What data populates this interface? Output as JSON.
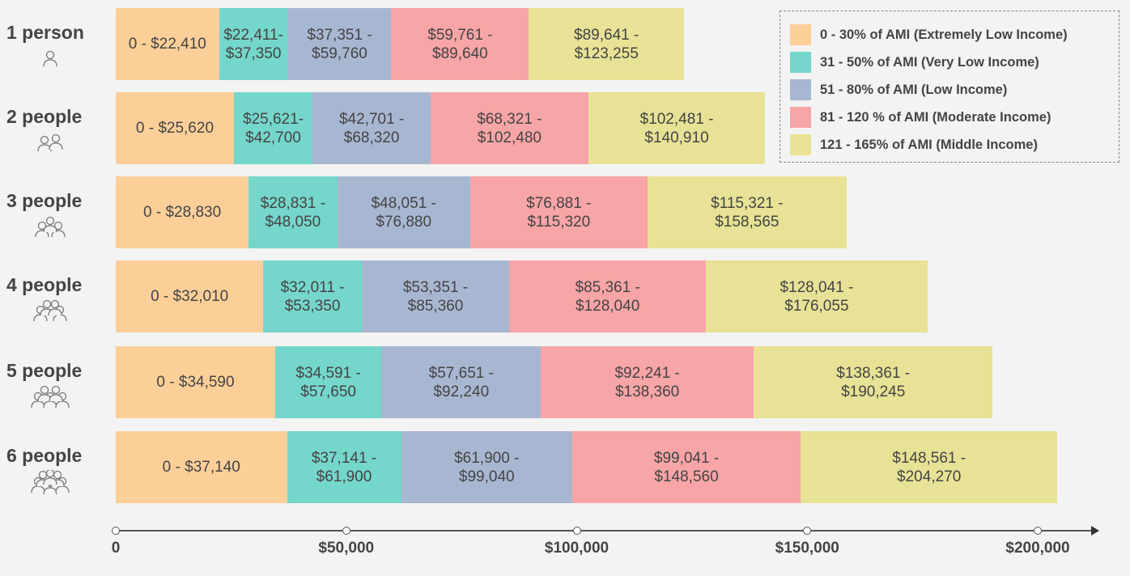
{
  "chart_data": {
    "type": "bar",
    "orientation": "horizontal",
    "stacked": true,
    "categories": [
      "1 person",
      "2 people",
      "3 people",
      "4 people",
      "5 people",
      "6 people"
    ],
    "category_icons": [
      "person-icon",
      "people-2-icon",
      "people-3-icon",
      "people-4-icon",
      "people-5-icon",
      "people-6-icon"
    ],
    "series": [
      {
        "name": "0 - 30% of AMI (Extremely Low Income)",
        "color": "#fccf99",
        "ranges": [
          [
            0,
            22410
          ],
          [
            0,
            25620
          ],
          [
            0,
            28830
          ],
          [
            0,
            32010
          ],
          [
            0,
            34590
          ],
          [
            0,
            37140
          ]
        ],
        "labels": [
          "0 - $22,410",
          "0 - $25,620",
          "0 - $28,830",
          "0 - $32,010",
          "0 - $34,590",
          "0 - $37,140"
        ]
      },
      {
        "name": "31 - 50% of AMI (Very Low Income)",
        "color": "#75d6cb",
        "ranges": [
          [
            22411,
            37350
          ],
          [
            25621,
            42700
          ],
          [
            28831,
            48050
          ],
          [
            32011,
            53350
          ],
          [
            34591,
            57650
          ],
          [
            37141,
            61900
          ]
        ],
        "labels": [
          "$22,411-\n$37,350",
          "$25,621-\n$42,700",
          "$28,831 -\n$48,050",
          "$32,011 -\n$53,350",
          "$34,591 -\n$57,650",
          "$37,141 -\n$61,900"
        ]
      },
      {
        "name": "51 - 80% of AMI (Low Income)",
        "color": "#a8b7d1",
        "ranges": [
          [
            37351,
            59760
          ],
          [
            42701,
            68320
          ],
          [
            48051,
            76880
          ],
          [
            53351,
            85360
          ],
          [
            57651,
            92240
          ],
          [
            61900,
            99040
          ]
        ],
        "labels": [
          "$37,351 -\n$59,760",
          "$42,701 -\n$68,320",
          "$48,051 -\n$76,880",
          "$53,351 -\n$85,360",
          "$57,651 -\n$92,240",
          "$61,900 -\n$99,040"
        ]
      },
      {
        "name": "81 - 120 % of AMI (Moderate Income)",
        "color": "#f7a5a6",
        "ranges": [
          [
            59761,
            89640
          ],
          [
            68321,
            102480
          ],
          [
            76881,
            115320
          ],
          [
            85361,
            128040
          ],
          [
            92241,
            138360
          ],
          [
            99041,
            148560
          ]
        ],
        "labels": [
          "$59,761 -\n$89,640",
          "$68,321 -\n$102,480",
          "$76,881 -\n$115,320",
          "$85,361 -\n$128,040",
          "$92,241 -\n$138,360",
          "$99,041 -\n$148,560"
        ]
      },
      {
        "name": "121 - 165% of AMI (Middle Income)",
        "color": "#e7e295",
        "ranges": [
          [
            89641,
            123255
          ],
          [
            102481,
            140910
          ],
          [
            115321,
            158565
          ],
          [
            128041,
            176055
          ],
          [
            138361,
            190245
          ],
          [
            148561,
            204270
          ]
        ],
        "labels": [
          "$89,641 -\n$123,255",
          "$102,481 -\n$140,910",
          "$115,321 -\n$158,565",
          "$128,041 -\n$176,055",
          "$138,361 -\n$190,245",
          "$148,561 -\n$204,270"
        ]
      }
    ],
    "x_ticks": [
      0,
      50000,
      100000,
      150000,
      200000
    ],
    "x_tick_labels": [
      "0",
      "$50,000",
      "$100,000",
      "$150,000",
      "$200,000"
    ],
    "xlim": [
      0,
      212000
    ],
    "legend_position": "top-right",
    "grid": false,
    "title": "",
    "xlabel": "",
    "ylabel": ""
  }
}
